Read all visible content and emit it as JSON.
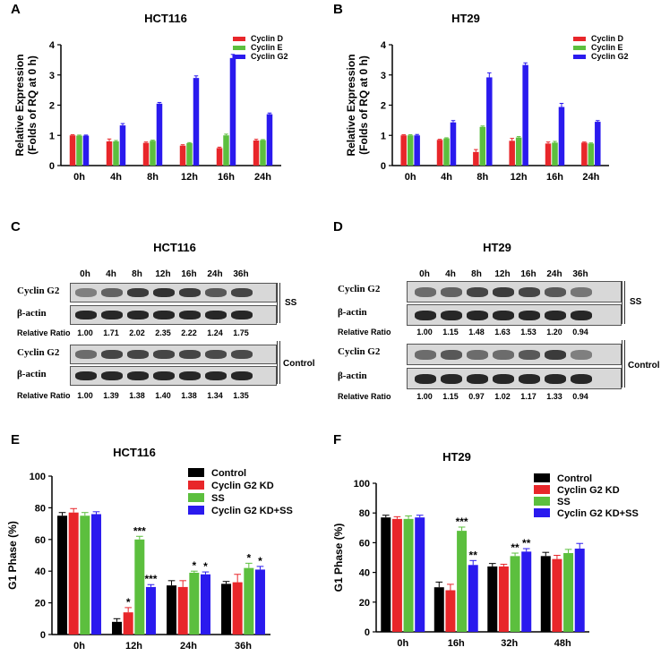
{
  "panels": {
    "A": {
      "letter": "A"
    },
    "B": {
      "letter": "B"
    },
    "C": {
      "letter": "C",
      "title": "HCT116"
    },
    "D": {
      "letter": "D",
      "title": "HT29"
    },
    "E": {
      "letter": "E"
    },
    "F": {
      "letter": "F"
    }
  },
  "blots": {
    "C": {
      "lanes": [
        "0h",
        "4h",
        "8h",
        "12h",
        "16h",
        "24h",
        "36h"
      ],
      "target_label": "Cyclin G2",
      "control_label": "β-actin",
      "ratio_label": "Relative Ratio",
      "ss_label": "SS",
      "control_condition_label": "Control",
      "ss_ratios": [
        "1.00",
        "1.71",
        "2.02",
        "2.35",
        "2.22",
        "1.24",
        "1.75"
      ],
      "control_ratios": [
        "1.00",
        "1.39",
        "1.38",
        "1.40",
        "1.38",
        "1.34",
        "1.35"
      ]
    },
    "D": {
      "lanes": [
        "0h",
        "4h",
        "8h",
        "12h",
        "16h",
        "24h",
        "36h"
      ],
      "target_label": "Cyclin G2",
      "control_label": "β-actin",
      "ratio_label": "Relative Ratio",
      "ss_label": "SS",
      "control_condition_label": "Control",
      "ss_ratios": [
        "1.00",
        "1.15",
        "1.48",
        "1.63",
        "1.53",
        "1.20",
        "0.94"
      ],
      "control_ratios": [
        "1.00",
        "1.15",
        "0.97",
        "1.02",
        "1.17",
        "1.33",
        "0.94"
      ]
    }
  },
  "colors": {
    "control": "#000000",
    "red": "#e8262a",
    "green": "#5cbf3e",
    "blue": "#2a1aee"
  },
  "chart_data": [
    {
      "id": "A",
      "type": "bar",
      "title": "HCT116",
      "ylabel": "Relative Expression (Folds of RQ at 0 h)",
      "xlabel": "",
      "ylim": [
        0,
        4
      ],
      "yticks": [
        0,
        1,
        2,
        3,
        4
      ],
      "categories": [
        "0h",
        "4h",
        "8h",
        "12h",
        "16h",
        "24h"
      ],
      "legend_position": "top-right",
      "series": [
        {
          "name": "Cyclin D",
          "color": "#e8262a",
          "values": [
            1.0,
            0.8,
            0.75,
            0.66,
            0.58,
            0.83
          ],
          "errors": [
            0.02,
            0.08,
            0.03,
            0.03,
            0.03,
            0.04
          ]
        },
        {
          "name": "Cyclin E",
          "color": "#5cbf3e",
          "values": [
            0.99,
            0.8,
            0.82,
            0.74,
            1.0,
            0.84
          ],
          "errors": [
            0.02,
            0.03,
            0.02,
            0.02,
            0.04,
            0.02
          ]
        },
        {
          "name": "Cyclin G2",
          "color": "#2a1aee",
          "values": [
            0.99,
            1.33,
            2.05,
            2.9,
            3.56,
            1.7
          ],
          "errors": [
            0.02,
            0.06,
            0.04,
            0.07,
            0.12,
            0.04
          ]
        }
      ],
      "annotations": []
    },
    {
      "id": "B",
      "type": "bar",
      "title": "HT29",
      "ylabel": "Relative Expression (Folds of RQ at 0 h)",
      "xlabel": "",
      "ylim": [
        0,
        4
      ],
      "yticks": [
        0,
        1,
        2,
        3,
        4
      ],
      "categories": [
        "0h",
        "4h",
        "8h",
        "12h",
        "16h",
        "24h"
      ],
      "legend_position": "top-right",
      "series": [
        {
          "name": "Cyclin D",
          "color": "#e8262a",
          "values": [
            1.0,
            0.85,
            0.45,
            0.82,
            0.73,
            0.76
          ],
          "errors": [
            0.02,
            0.02,
            0.08,
            0.08,
            0.05,
            0.02
          ]
        },
        {
          "name": "Cyclin E",
          "color": "#5cbf3e",
          "values": [
            1.0,
            0.9,
            1.28,
            0.93,
            0.76,
            0.73
          ],
          "errors": [
            0.02,
            0.02,
            0.03,
            0.03,
            0.04,
            0.02
          ]
        },
        {
          "name": "Cyclin G2",
          "color": "#2a1aee",
          "values": [
            1.0,
            1.43,
            2.92,
            3.33,
            1.94,
            1.45
          ],
          "errors": [
            0.03,
            0.06,
            0.15,
            0.07,
            0.12,
            0.04
          ]
        }
      ],
      "annotations": []
    },
    {
      "id": "E",
      "type": "bar",
      "title": "HCT116",
      "ylabel": "G1 Phase (%)",
      "xlabel": "",
      "ylim": [
        0,
        100
      ],
      "yticks": [
        0,
        20,
        40,
        60,
        80,
        100
      ],
      "categories": [
        "0h",
        "12h",
        "24h",
        "36h"
      ],
      "legend_position": "top-right",
      "series": [
        {
          "name": "Control",
          "color": "#000000",
          "values": [
            75,
            8,
            31,
            32
          ],
          "errors": [
            2,
            2,
            3,
            1.5
          ]
        },
        {
          "name": "Cyclin G2 KD",
          "color": "#e8262a",
          "values": [
            77,
            14,
            30,
            33
          ],
          "errors": [
            2.5,
            3,
            4,
            5
          ]
        },
        {
          "name": "SS",
          "color": "#5cbf3e",
          "values": [
            75,
            60,
            39,
            42
          ],
          "errors": [
            2,
            2,
            1,
            3
          ]
        },
        {
          "name": "Cyclin G2 KD+SS",
          "color": "#2a1aee",
          "values": [
            76,
            30,
            38,
            41
          ],
          "errors": [
            1.5,
            1.5,
            1.5,
            2
          ]
        }
      ],
      "annotations": [
        {
          "category": "12h",
          "series": "Cyclin G2 KD",
          "text": "*"
        },
        {
          "category": "12h",
          "series": "SS",
          "text": "***"
        },
        {
          "category": "12h",
          "series": "Cyclin G2 KD+SS",
          "text": "***"
        },
        {
          "category": "24h",
          "series": "SS",
          "text": "*"
        },
        {
          "category": "24h",
          "series": "Cyclin G2 KD+SS",
          "text": "*"
        },
        {
          "category": "36h",
          "series": "SS",
          "text": "*"
        },
        {
          "category": "36h",
          "series": "Cyclin G2 KD+SS",
          "text": "*"
        }
      ]
    },
    {
      "id": "F",
      "type": "bar",
      "title": "HT29",
      "ylabel": "G1 Phase (%)",
      "xlabel": "",
      "ylim": [
        0,
        100
      ],
      "yticks": [
        0,
        20,
        40,
        60,
        80,
        100
      ],
      "categories": [
        "0h",
        "16h",
        "32h",
        "48h"
      ],
      "legend_position": "top-right",
      "series": [
        {
          "name": "Control",
          "color": "#000000",
          "values": [
            77,
            30,
            44,
            51
          ],
          "errors": [
            1.5,
            3.5,
            2,
            2.5
          ]
        },
        {
          "name": "Cyclin G2 KD",
          "color": "#e8262a",
          "values": [
            76,
            28,
            44,
            49
          ],
          "errors": [
            1.5,
            4,
            1.5,
            2.5
          ]
        },
        {
          "name": "SS",
          "color": "#5cbf3e",
          "values": [
            76,
            68,
            51,
            53
          ],
          "errors": [
            2,
            2.5,
            2,
            2.5
          ]
        },
        {
          "name": "Cyclin G2 KD+SS",
          "color": "#2a1aee",
          "values": [
            77,
            45,
            54,
            56
          ],
          "errors": [
            1.5,
            3,
            2,
            3.5
          ]
        }
      ],
      "annotations": [
        {
          "category": "16h",
          "series": "SS",
          "text": "***"
        },
        {
          "category": "16h",
          "series": "Cyclin G2 KD+SS",
          "text": "**"
        },
        {
          "category": "32h",
          "series": "SS",
          "text": "**"
        },
        {
          "category": "32h",
          "series": "Cyclin G2 KD+SS",
          "text": "**"
        }
      ]
    }
  ]
}
